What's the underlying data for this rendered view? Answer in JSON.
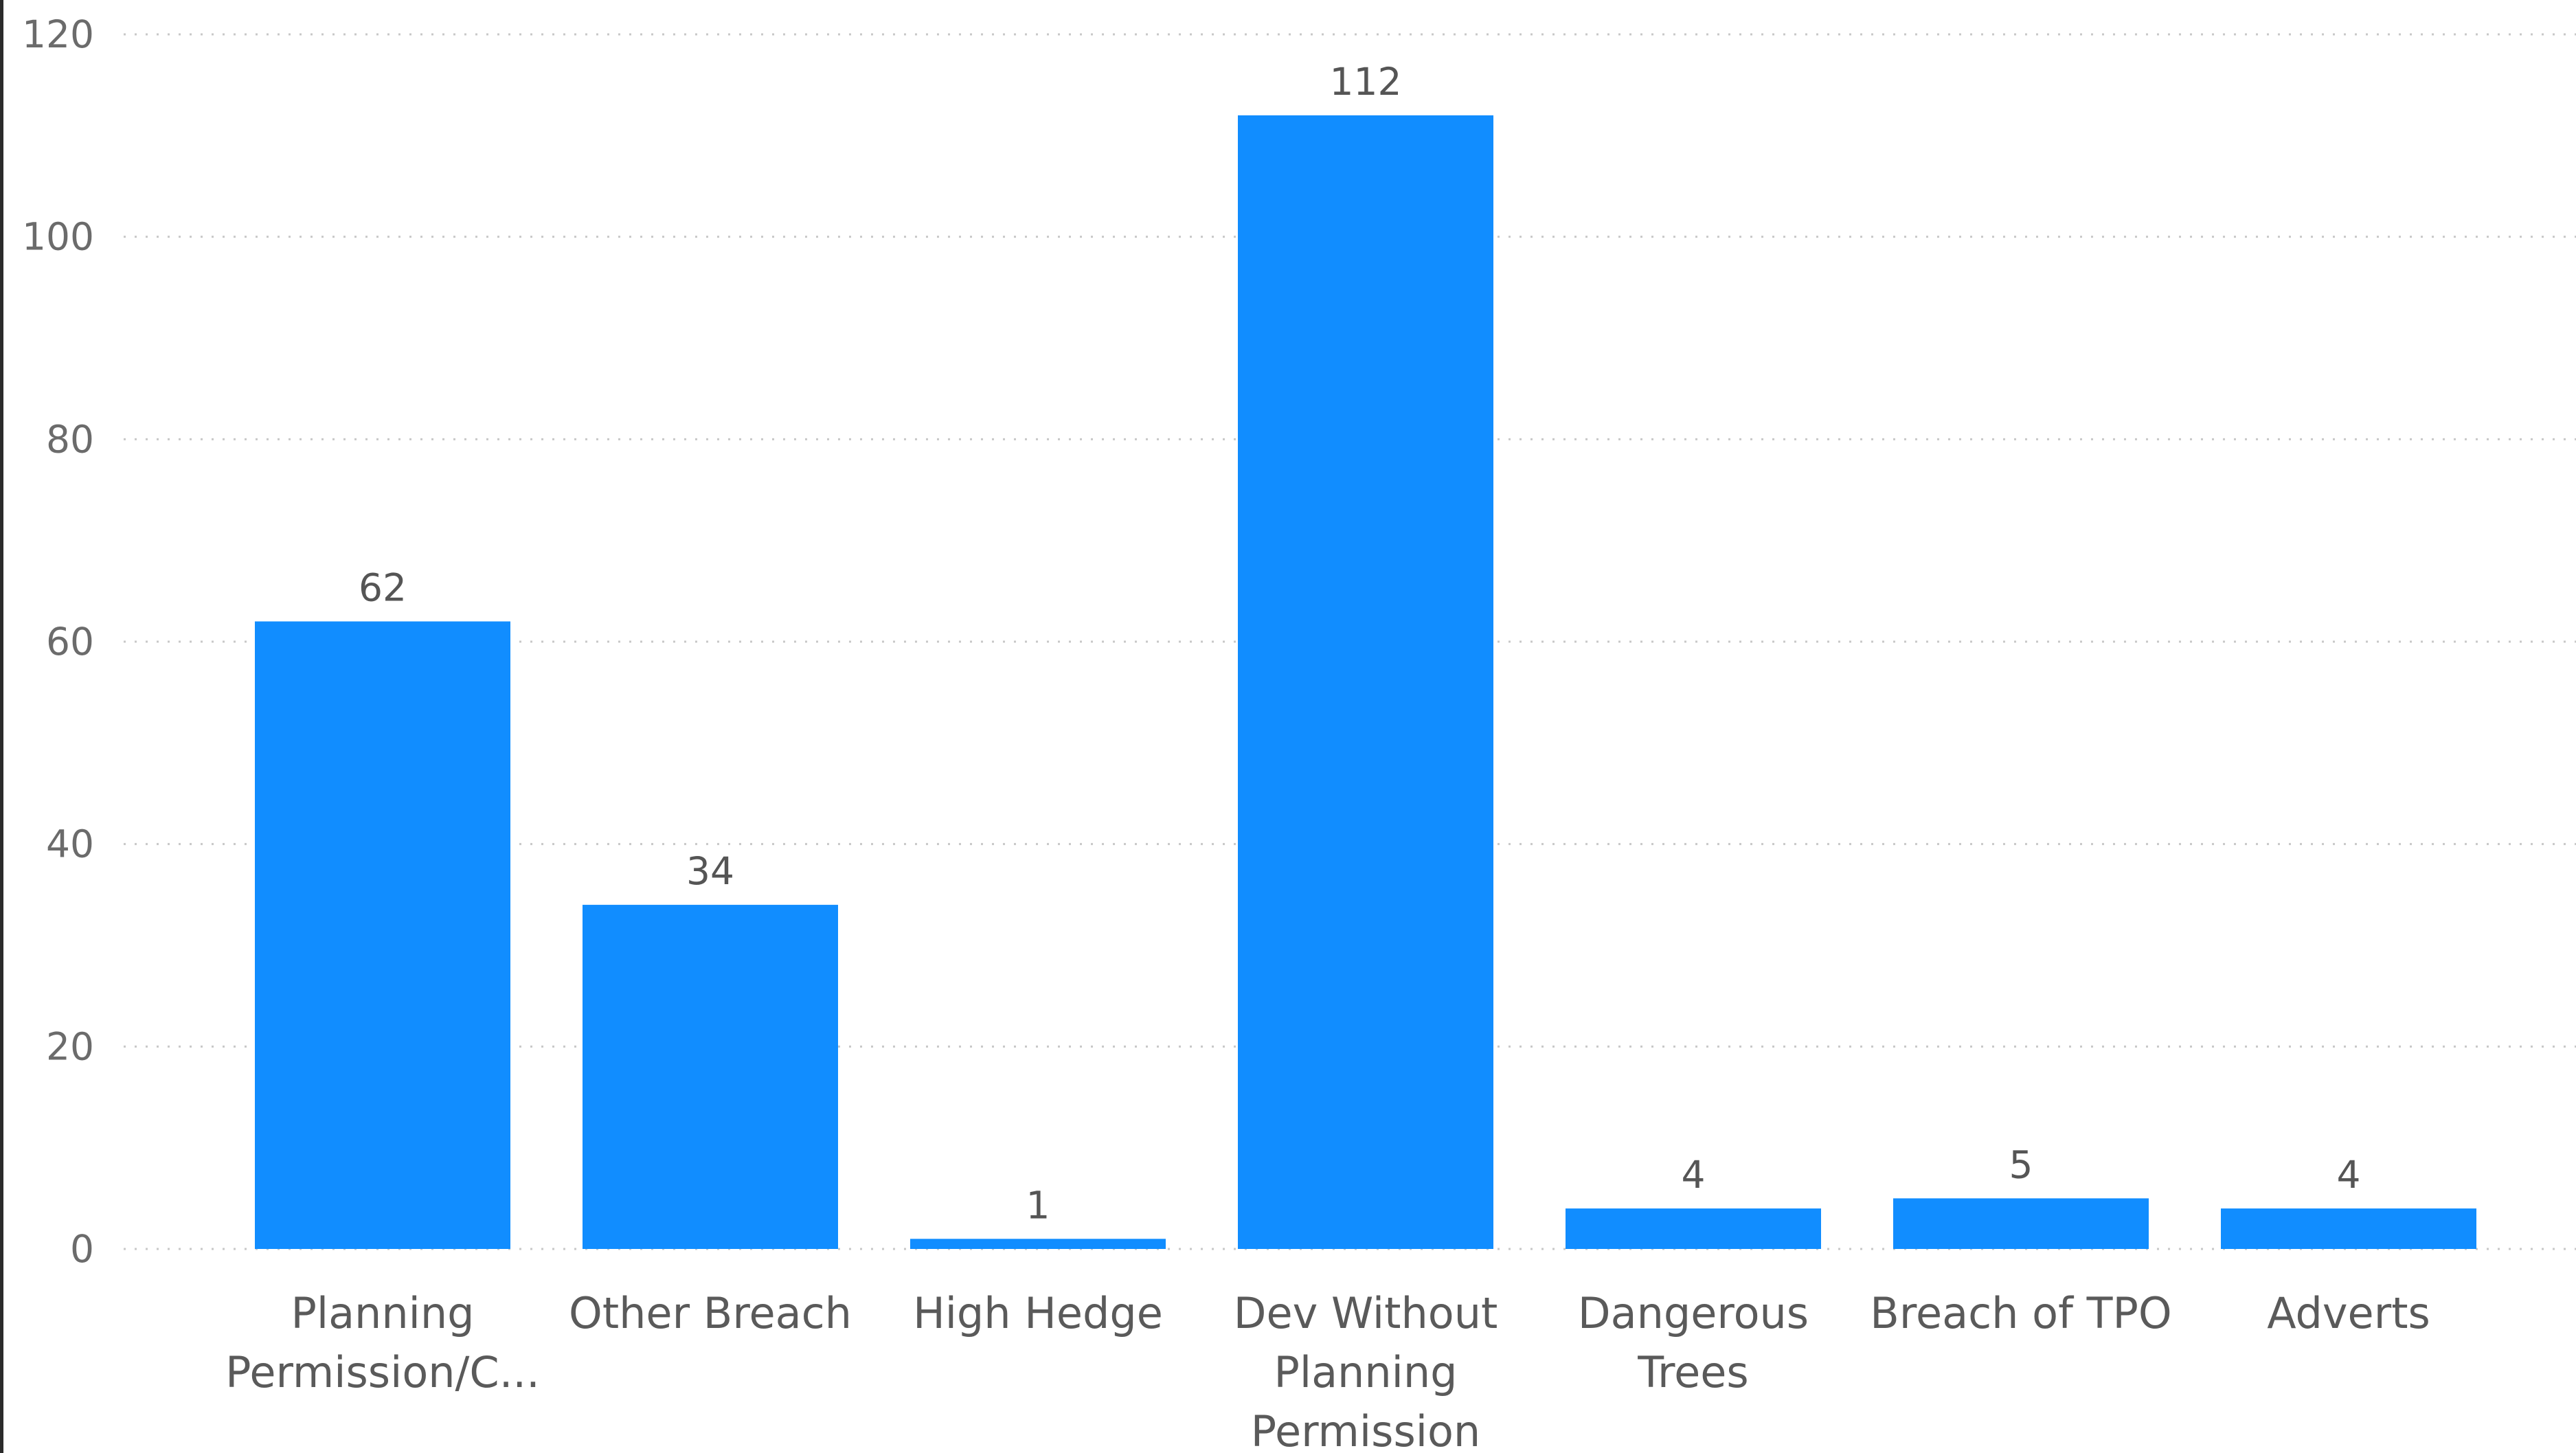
{
  "chart_data": {
    "type": "bar",
    "categories": [
      [
        "Planning",
        "Permission/C..."
      ],
      [
        "Other Breach"
      ],
      [
        "High Hedge"
      ],
      [
        "Dev Without",
        "Planning",
        "Permission"
      ],
      [
        "Dangerous",
        "Trees"
      ],
      [
        "Breach of TPO"
      ],
      [
        "Adverts"
      ]
    ],
    "values": [
      62,
      34,
      1,
      112,
      4,
      5,
      4
    ],
    "data_labels": [
      "62",
      "34",
      "1",
      "112",
      "4",
      "5",
      "4"
    ],
    "ylim": [
      0,
      120
    ],
    "yticks": [
      0,
      20,
      40,
      60,
      80,
      100,
      120
    ],
    "ytick_labels": [
      "0",
      "20",
      "40",
      "60",
      "80",
      "100",
      "120"
    ],
    "grid": "horizontal-dotted",
    "bar_color": "#118DFF",
    "legend": "none"
  }
}
